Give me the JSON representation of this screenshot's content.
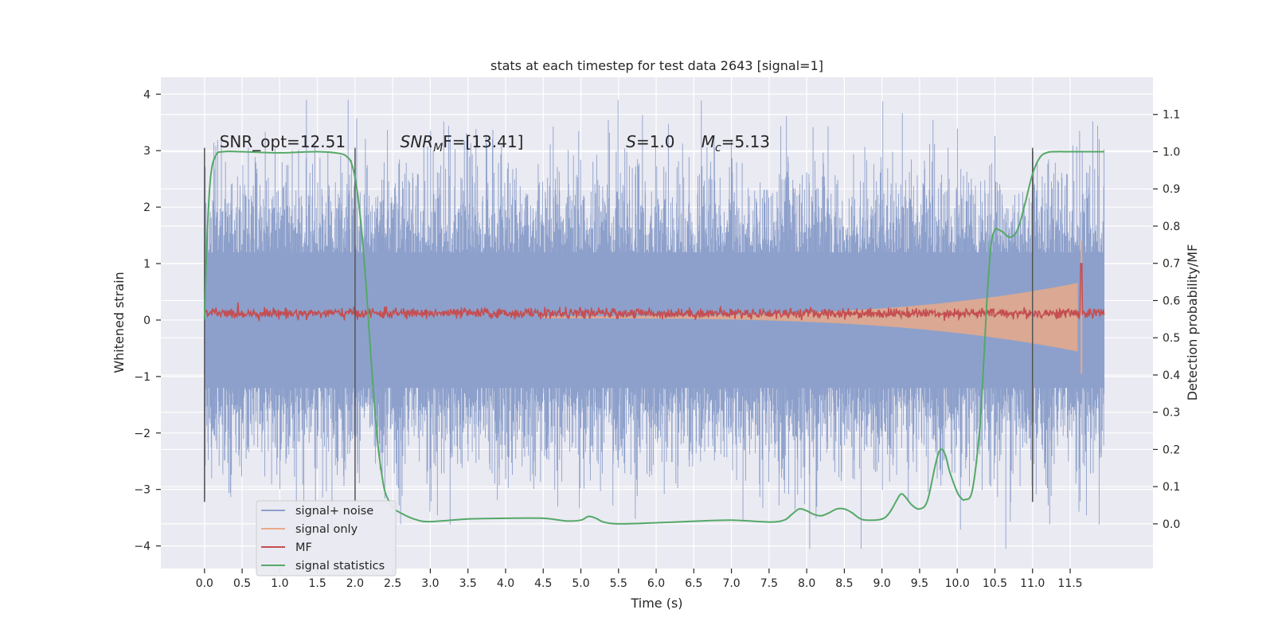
{
  "chart_data": {
    "type": "line",
    "title": "stats at each timestep for test data 2643 [signal=1]",
    "xlabel": "Time (s)",
    "ylabel": "Whitened strain",
    "y2label": "Detection probability/MF",
    "xlim": [
      -0.58,
      12.6
    ],
    "ylim": [
      -4.4,
      4.3
    ],
    "y2lim": [
      -0.12,
      1.2
    ],
    "xticks": [
      "0.0",
      "0.5",
      "1.0",
      "1.5",
      "2.0",
      "2.5",
      "3.0",
      "3.5",
      "4.0",
      "4.5",
      "5.0",
      "5.5",
      "6.0",
      "6.5",
      "7.0",
      "7.5",
      "8.0",
      "8.5",
      "9.0",
      "9.5",
      "10.0",
      "10.5",
      "11.0",
      "11.5"
    ],
    "yticks": [
      "4",
      "3",
      "2",
      "1",
      "0",
      "−1",
      "−2",
      "−3",
      "−4"
    ],
    "y2ticks": [
      "1.1",
      "1.0",
      "0.9",
      "0.8",
      "0.7",
      "0.6",
      "0.5",
      "0.4",
      "0.3",
      "0.2",
      "0.1",
      "0.0"
    ],
    "annotations": [
      {
        "text": "SNR_opt=12.51",
        "x": 0.2
      },
      {
        "main": "SNR",
        "sub": "M",
        "rest": "F=[13.41]",
        "x": 2.6
      },
      {
        "main": "S",
        "rest": "=1.0",
        "x": 5.6
      },
      {
        "main": "M",
        "sub": "c",
        "rest": "=5.13",
        "x": 6.6
      }
    ],
    "vlines": [
      0.0,
      2.0,
      11.0
    ],
    "vline_range": [
      -3.22,
      3.05
    ],
    "series": [
      {
        "name": "signal+ noise",
        "color": "#8da0cb",
        "noise_band": [
          -2.4,
          2.4
        ]
      },
      {
        "name": "signal only",
        "color": "#e8a98a",
        "envelope_end": 11.65
      },
      {
        "name": "MF",
        "color": "#c44e52",
        "level": 0.12
      },
      {
        "name": "signal statistics",
        "color": "#55a868",
        "x": [
          0.0,
          0.03,
          0.08,
          0.15,
          0.25,
          0.5,
          1.0,
          1.5,
          1.8,
          1.9,
          1.95,
          2.0,
          2.05,
          2.1,
          2.15,
          2.2,
          2.25,
          2.3,
          2.35,
          2.4,
          2.5,
          2.6,
          2.8,
          3.0,
          3.5,
          4.0,
          4.5,
          4.8,
          5.0,
          5.1,
          5.2,
          5.3,
          5.5,
          6.0,
          6.5,
          7.0,
          7.5,
          7.7,
          7.8,
          7.9,
          8.0,
          8.1,
          8.2,
          8.3,
          8.4,
          8.5,
          8.6,
          8.7,
          8.8,
          9.0,
          9.1,
          9.2,
          9.25,
          9.3,
          9.4,
          9.5,
          9.6,
          9.7,
          9.75,
          9.8,
          9.85,
          9.9,
          10.0,
          10.05,
          10.1,
          10.2,
          10.3,
          10.35,
          10.4,
          10.45,
          10.5,
          10.55,
          10.6,
          10.7,
          10.8,
          10.9,
          11.0,
          11.1,
          11.2,
          11.3,
          11.5,
          11.8,
          11.95
        ],
        "y": [
          0.55,
          0.75,
          0.93,
          0.99,
          1.0,
          1.0,
          0.997,
          1.0,
          0.995,
          0.985,
          0.97,
          0.93,
          0.86,
          0.76,
          0.63,
          0.48,
          0.34,
          0.22,
          0.14,
          0.085,
          0.045,
          0.03,
          0.012,
          0.006,
          0.013,
          0.015,
          0.015,
          0.008,
          0.01,
          0.02,
          0.015,
          0.005,
          0.0,
          0.003,
          0.007,
          0.01,
          0.005,
          0.01,
          0.025,
          0.04,
          0.035,
          0.025,
          0.022,
          0.03,
          0.04,
          0.04,
          0.03,
          0.015,
          0.01,
          0.013,
          0.03,
          0.065,
          0.08,
          0.075,
          0.05,
          0.04,
          0.06,
          0.15,
          0.19,
          0.2,
          0.18,
          0.14,
          0.085,
          0.07,
          0.065,
          0.09,
          0.26,
          0.43,
          0.62,
          0.75,
          0.79,
          0.79,
          0.785,
          0.77,
          0.79,
          0.86,
          0.94,
          0.985,
          0.998,
          1.0,
          1.0,
          1.0,
          1.0
        ]
      }
    ],
    "grid": true,
    "legend": "lower-left"
  }
}
